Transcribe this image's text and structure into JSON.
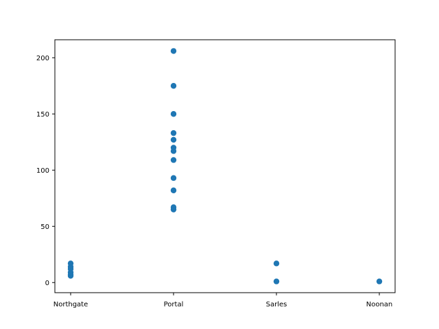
{
  "chart_data": {
    "type": "scatter",
    "title": "",
    "xlabel": "",
    "ylabel": "",
    "categories": [
      "Northgate",
      "Portal",
      "Sarles",
      "Noonan"
    ],
    "ylim": [
      -9,
      216
    ],
    "yticks": [
      0,
      50,
      100,
      150,
      200
    ],
    "grid": false,
    "marker_color": "#1f77b4",
    "series": [
      {
        "points": [
          {
            "x": "Northgate",
            "y": 6
          },
          {
            "x": "Northgate",
            "y": 7
          },
          {
            "x": "Northgate",
            "y": 9
          },
          {
            "x": "Northgate",
            "y": 12
          },
          {
            "x": "Northgate",
            "y": 14
          },
          {
            "x": "Northgate",
            "y": 17
          },
          {
            "x": "Portal",
            "y": 65
          },
          {
            "x": "Portal",
            "y": 67
          },
          {
            "x": "Portal",
            "y": 82
          },
          {
            "x": "Portal",
            "y": 93
          },
          {
            "x": "Portal",
            "y": 109
          },
          {
            "x": "Portal",
            "y": 117
          },
          {
            "x": "Portal",
            "y": 120
          },
          {
            "x": "Portal",
            "y": 127
          },
          {
            "x": "Portal",
            "y": 133
          },
          {
            "x": "Portal",
            "y": 150
          },
          {
            "x": "Portal",
            "y": 175
          },
          {
            "x": "Portal",
            "y": 206
          },
          {
            "x": "Sarles",
            "y": 1
          },
          {
            "x": "Sarles",
            "y": 17
          },
          {
            "x": "Noonan",
            "y": 1
          }
        ]
      }
    ]
  }
}
